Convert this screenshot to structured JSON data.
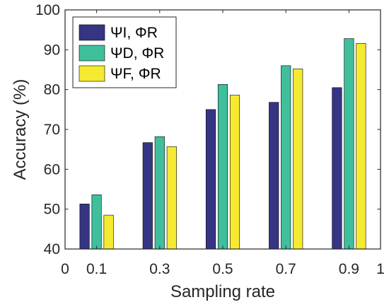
{
  "chart_data": {
    "type": "bar",
    "title": "",
    "xlabel": "Sampling rate",
    "ylabel": "Accuracy (%)",
    "categories": [
      "0.1",
      "0.3",
      "0.5",
      "0.7",
      "0.9"
    ],
    "x": [
      0.1,
      0.3,
      0.5,
      0.7,
      0.9
    ],
    "xlim": [
      0,
      1
    ],
    "ylim": [
      40,
      100
    ],
    "x_ticks": [
      "0",
      "0.1",
      "0.3",
      "0.5",
      "0.7",
      "0.9",
      "1"
    ],
    "y_ticks": [
      "40",
      "50",
      "60",
      "70",
      "80",
      "90",
      "100"
    ],
    "grid": false,
    "legend_position": "top-left",
    "series": [
      {
        "name": "ΨI, ΦR",
        "color": "#353584",
        "values": [
          51.3,
          66.7,
          75.0,
          76.8,
          80.5
        ]
      },
      {
        "name": "ΨD, ΦR",
        "color": "#3fbf9c",
        "values": [
          53.6,
          68.2,
          81.3,
          86.0,
          92.8
        ]
      },
      {
        "name": "ΨF, ΦR",
        "color": "#f4ea31",
        "values": [
          48.5,
          65.7,
          78.6,
          85.2,
          91.6
        ]
      }
    ]
  }
}
